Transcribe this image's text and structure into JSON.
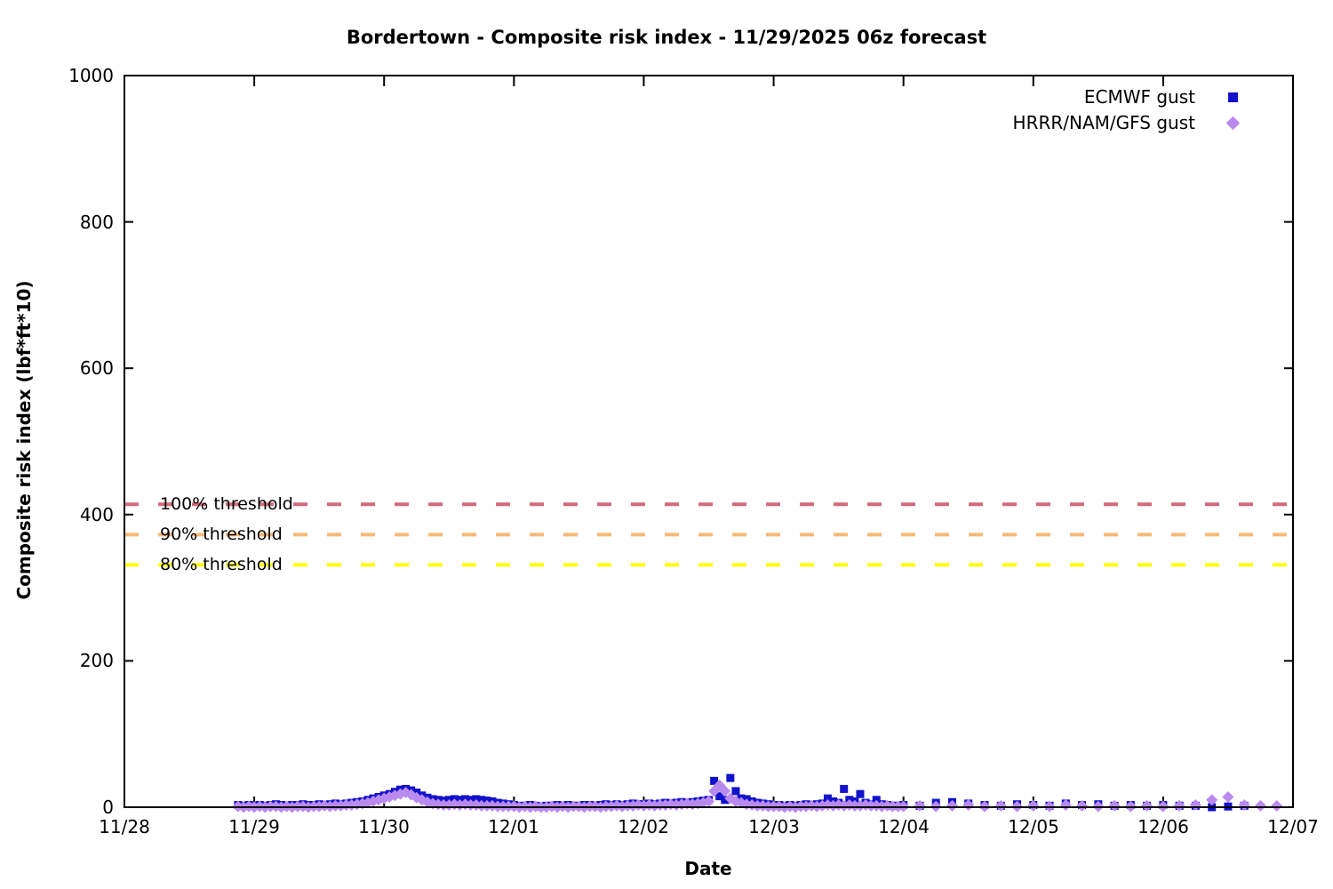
{
  "title": "Bordertown - Composite risk index - 11/29/2025 06z forecast",
  "chart_data": {
    "type": "scatter",
    "title": "Bordertown - Composite risk index - 11/29/2025 06z forecast",
    "x_axis": {
      "label": "Date",
      "tick_labels": [
        "11/28",
        "11/29",
        "11/30",
        "12/01",
        "12/02",
        "12/03",
        "12/04",
        "12/05",
        "12/06",
        "12/07"
      ],
      "range_days": [
        0,
        9
      ],
      "origin_date": "11/28"
    },
    "y_axis": {
      "label": "Composite risk index (lbf*ft*10)",
      "ticks": [
        0,
        200,
        400,
        600,
        800,
        1000
      ],
      "range": [
        0,
        1000
      ]
    },
    "grid": "off",
    "legend_position": "top-right-inside",
    "thresholds": [
      {
        "label": "100% threshold",
        "value": 414.0,
        "color": "#d4697f"
      },
      {
        "label": "90% threshold",
        "value": 372.6,
        "color": "#f8b878"
      },
      {
        "label": "80% threshold",
        "value": 331.2,
        "color": "#ffff00"
      }
    ],
    "series": [
      {
        "name": "ECMWF gust",
        "marker": "square",
        "color": "#1212cc",
        "segments": [
          {
            "t_start_days": 0.875,
            "dt_days": 0.0416667,
            "values": [
              3,
              2,
              3,
              2,
              3,
              2,
              3,
              4,
              3,
              2,
              3,
              3,
              4,
              3,
              3,
              4,
              3,
              4,
              5,
              4,
              5,
              6,
              7,
              8,
              10,
              12,
              14,
              16,
              18,
              21,
              24,
              25,
              23,
              20,
              16,
              13,
              11,
              10,
              9,
              10,
              11,
              10,
              11,
              10,
              11,
              10,
              9,
              8,
              6,
              5,
              4,
              3,
              2,
              2,
              3,
              2,
              1,
              2,
              2,
              3,
              2,
              3,
              2,
              2,
              3,
              3,
              2,
              3,
              4,
              3,
              4,
              3,
              4,
              5,
              4,
              4,
              5,
              4,
              5,
              6,
              5,
              6,
              7,
              6,
              7,
              8,
              9,
              10,
              36,
              15,
              10,
              40,
              22,
              12,
              11,
              8,
              6,
              5,
              4,
              3,
              3,
              2,
              3,
              2,
              3,
              4,
              3,
              4,
              5,
              12,
              8,
              6,
              25,
              10,
              8,
              18,
              6,
              4,
              10,
              4,
              3,
              2,
              2
            ]
          },
          {
            "t_start_days": 6.0,
            "dt_days": 0.125,
            "values": [
              3,
              2,
              6,
              7,
              5,
              3,
              2,
              4,
              3,
              2,
              5,
              3,
              4,
              2,
              3,
              2,
              3,
              2,
              2,
              0,
              1,
              2
            ]
          }
        ]
      },
      {
        "name": "HRRR/NAM/GFS gust",
        "marker": "diamond",
        "color": "#b98aee",
        "segments": [
          {
            "t_start_days": 0.875,
            "dt_days": 0.0416667,
            "values": [
              1,
              0,
              1,
              0,
              1,
              0,
              1,
              1,
              0,
              1,
              0,
              1,
              1,
              0,
              1,
              1,
              2,
              1,
              2,
              2,
              3,
              3,
              4,
              5,
              6,
              8,
              10,
              12,
              14,
              16,
              18,
              20,
              17,
              13,
              10,
              7,
              5,
              4,
              3,
              3,
              4,
              3,
              4,
              3,
              3,
              2,
              2,
              2,
              1,
              1,
              1,
              1,
              0,
              1,
              0,
              1,
              0,
              0,
              1,
              0,
              1,
              0,
              1,
              1,
              0,
              1,
              1,
              0,
              1,
              1,
              2,
              1,
              2,
              2,
              3,
              2,
              3,
              2,
              3,
              3,
              4,
              3,
              4,
              5,
              4,
              5,
              6,
              8,
              22,
              30,
              22,
              12,
              8,
              6,
              4,
              3,
              2,
              2,
              1,
              1,
              1,
              0,
              1,
              0,
              1,
              1,
              2,
              1,
              2,
              3,
              2,
              3,
              2,
              3,
              2,
              2,
              3,
              2,
              2,
              1,
              2,
              1,
              1
            ]
          },
          {
            "t_start_days": 6.0,
            "dt_days": 0.125,
            "values": [
              1,
              2,
              1,
              2,
              3,
              1,
              2,
              1,
              2,
              1,
              3,
              2,
              1,
              2,
              1,
              2,
              1,
              2,
              3,
              10,
              14,
              3,
              2,
              2
            ]
          }
        ]
      }
    ],
    "plot_style": {
      "border_color": "#000000",
      "background": "#ffffff",
      "threshold_dash": [
        16,
        22
      ],
      "threshold_line_width": 4
    }
  },
  "legend": [
    {
      "label": "ECMWF gust",
      "marker": "square-icon",
      "color": "#1212cc"
    },
    {
      "label": "HRRR/NAM/GFS gust",
      "marker": "diamond-icon",
      "color": "#b98aee"
    }
  ]
}
